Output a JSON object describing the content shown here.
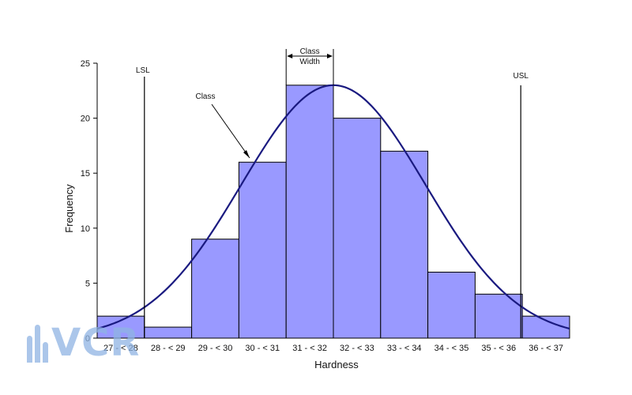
{
  "chart_data": {
    "type": "bar",
    "xlabel": "Hardness",
    "ylabel": "Frequency",
    "ylim": [
      0,
      25
    ],
    "yticks": [
      0,
      5,
      10,
      15,
      20,
      25
    ],
    "categories": [
      "27 - < 28",
      "28 - < 29",
      "29 - < 30",
      "30 - < 31",
      "31 - < 32",
      "32 - < 33",
      "33 - < 34",
      "34 - < 35",
      "35 - < 36",
      "36 - < 37"
    ],
    "values": [
      2,
      1,
      9,
      16,
      23,
      20,
      17,
      6,
      4,
      2
    ],
    "curve": {
      "type": "normal",
      "mean": 32,
      "sd": 1.95,
      "peak": 23
    },
    "annotations": {
      "lsl": {
        "label": "LSL",
        "x": 28
      },
      "usl": {
        "label": "USL",
        "x": 36
      },
      "class": {
        "label": "Class"
      },
      "class_width": {
        "label_line1": "Class",
        "label_line2": "Width"
      }
    },
    "grid": false
  },
  "logo": {
    "text": "VCR"
  }
}
